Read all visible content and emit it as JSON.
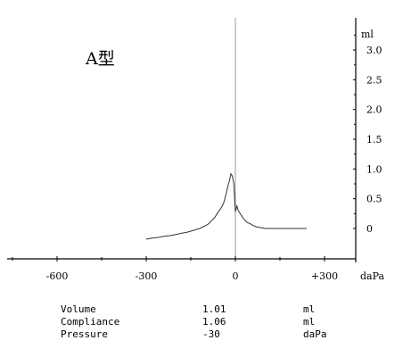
{
  "chart_data": {
    "type": "line",
    "title": "A型",
    "xlabel": "daPa",
    "ylabel": "ml",
    "xlim": [
      -750,
      500
    ],
    "ylim": [
      -0.3,
      3.4
    ],
    "x_ticks": [
      -600,
      -300,
      0,
      300
    ],
    "x_tick_labels": [
      "-600",
      "-300",
      "0",
      "+300"
    ],
    "y_ticks": [
      0,
      0.5,
      1.0,
      1.5,
      2.0,
      2.5,
      3.0
    ],
    "y_tick_labels": [
      "0",
      "0.5",
      "1.0",
      "1.5",
      "2.0",
      "2.5",
      "3.0"
    ],
    "grid": false,
    "series": [
      {
        "x": [
          -300,
          -280,
          -260,
          -240,
          -220,
          -200,
          -180,
          -160,
          -140,
          -120,
          -100,
          -90,
          -80,
          -70,
          -60,
          -50,
          -40,
          -30,
          -25,
          -20,
          -15,
          -10,
          -5,
          0,
          5,
          10,
          20,
          30,
          40,
          50,
          60,
          70,
          80,
          90,
          100,
          120,
          140,
          160,
          180,
          200,
          220,
          240
        ],
        "y": [
          -0.18,
          -0.16,
          -0.15,
          -0.13,
          -0.12,
          -0.1,
          -0.08,
          -0.06,
          -0.03,
          0.0,
          0.05,
          0.08,
          0.13,
          0.18,
          0.26,
          0.33,
          0.42,
          0.6,
          0.72,
          0.8,
          0.92,
          0.88,
          0.75,
          0.28,
          0.38,
          0.3,
          0.22,
          0.15,
          0.1,
          0.08,
          0.05,
          0.03,
          0.02,
          0.01,
          0.0,
          0.0,
          0.0,
          0.0,
          0.0,
          0.0,
          0.0,
          0.0
        ]
      }
    ]
  },
  "readout": [
    {
      "label": "Volume",
      "value": "1.01",
      "unit": "ml"
    },
    {
      "label": "Compliance",
      "value": "1.06",
      "unit": "ml"
    },
    {
      "label": "Pressure",
      "value": "-30",
      "unit": "daPa"
    }
  ]
}
